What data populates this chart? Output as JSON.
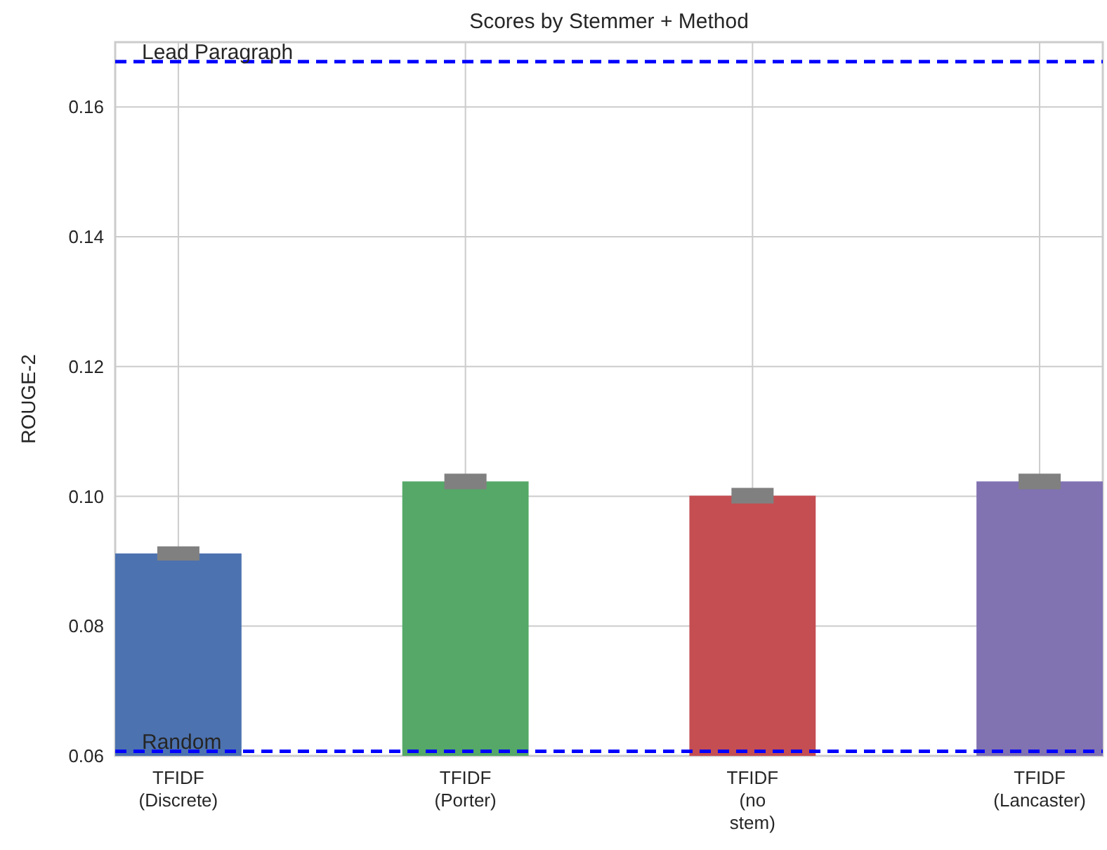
{
  "chart_data": {
    "type": "bar",
    "title": "Scores by Stemmer + Method",
    "ylabel": "ROUGE-2",
    "categories": [
      "TFIDF\n(Discrete)",
      "TFIDF\n(Porter)",
      "TFIDF\n(no\nstem)",
      "TFIDF\n(Lancaster)"
    ],
    "values": [
      0.0912,
      0.1023,
      0.1001,
      0.1023
    ],
    "colors": [
      "#4c72b0",
      "#55a868",
      "#c44e52",
      "#8172b2"
    ],
    "errors": [
      0.0011,
      0.0012,
      0.0012,
      0.0012
    ],
    "ylim": [
      0.06,
      0.17
    ],
    "yticks": [
      {
        "value": 0.06,
        "label": "0.06"
      },
      {
        "value": 0.08,
        "label": "0.08"
      },
      {
        "value": 0.1,
        "label": "0.10"
      },
      {
        "value": 0.12,
        "label": "0.12"
      },
      {
        "value": 0.14,
        "label": "0.14"
      },
      {
        "value": 0.16,
        "label": "0.16"
      }
    ],
    "grid": true,
    "ref_lines": [
      {
        "axis": "y",
        "value": 0.167,
        "label": "Lead Paragraph",
        "color": "#0000ff",
        "line_style": "dashed"
      },
      {
        "axis": "y",
        "value": 0.0607,
        "label": "Random",
        "color": "#0000ff",
        "line_style": "dashed"
      }
    ]
  }
}
